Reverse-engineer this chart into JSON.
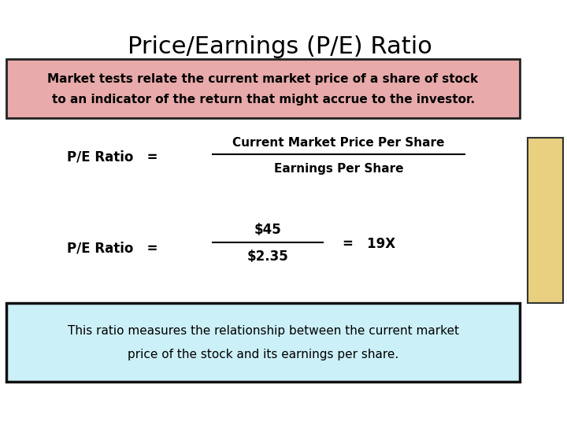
{
  "title": "Price/Earnings (P/E) Ratio",
  "title_fontsize": 22,
  "top_box_text_line1": "Market tests relate the current market price of a share of stock",
  "top_box_text_line2": "to an indicator of the return that might accrue to the investor.",
  "top_box_bg": "#e8aaaa",
  "top_box_border": "#222222",
  "formula_label": "P/E Ratio   =",
  "formula_numerator": "Current Market Price Per Share",
  "formula_denominator": "Earnings Per Share",
  "example_label": "P/E Ratio   =",
  "example_numerator": "$45",
  "example_denominator": "$2.35",
  "example_equals": "=   19X",
  "bottom_box_text_line1": "This ratio measures the relationship between the current market",
  "bottom_box_text_line2": "price of the stock and its earnings per share.",
  "bottom_box_bg": "#ccf0f8",
  "bottom_box_border": "#111111",
  "bg_color": "#ffffff",
  "text_color": "#000000",
  "right_bar_color": "#e8d080",
  "right_bar_border": "#333333"
}
